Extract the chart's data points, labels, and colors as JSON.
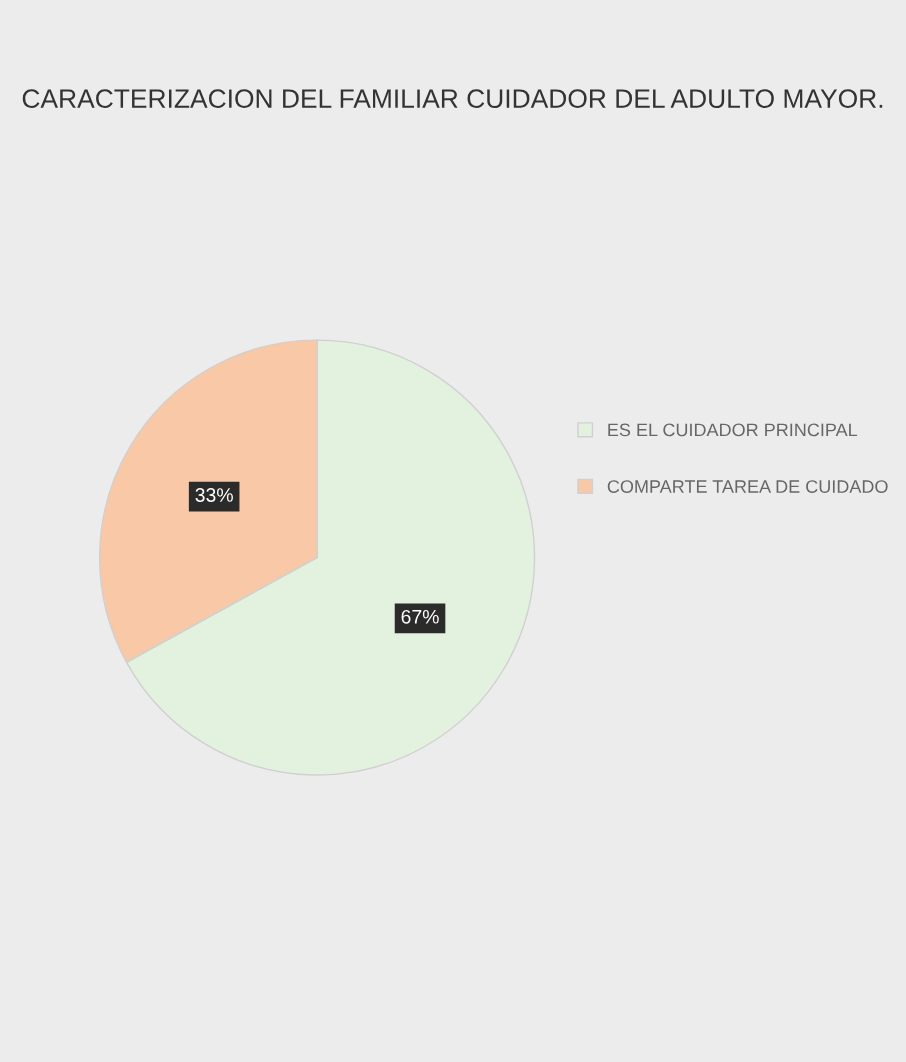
{
  "chart_data": {
    "type": "pie",
    "title": "CARACTERIZACION DEL FAMILIAR CUIDADOR DEL ADULTO MAYOR.",
    "categories": [
      "ES EL CUIDADOR PRINCIPAL",
      "COMPARTE TAREA DE CUIDADO"
    ],
    "values": [
      67,
      33
    ],
    "colors": [
      "#e3f1df",
      "#f9c8a6"
    ],
    "value_labels": [
      "67%",
      "33%"
    ],
    "legend": "right"
  }
}
